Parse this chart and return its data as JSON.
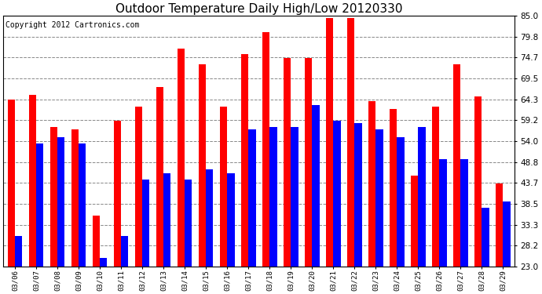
{
  "title": "Outdoor Temperature Daily High/Low 20120330",
  "copyright": "Copyright 2012 Cartronics.com",
  "dates": [
    "03/06",
    "03/07",
    "03/08",
    "03/09",
    "03/10",
    "03/11",
    "03/12",
    "03/13",
    "03/14",
    "03/15",
    "03/16",
    "03/17",
    "03/18",
    "03/19",
    "03/20",
    "03/21",
    "03/22",
    "03/23",
    "03/24",
    "03/25",
    "03/26",
    "03/27",
    "03/28",
    "03/29"
  ],
  "highs": [
    64.3,
    65.5,
    57.5,
    57.0,
    35.5,
    59.0,
    62.5,
    67.5,
    77.0,
    73.0,
    62.5,
    75.5,
    81.0,
    74.5,
    74.5,
    84.5,
    84.5,
    64.0,
    62.0,
    45.5,
    62.5,
    73.0,
    65.0,
    43.5
  ],
  "lows": [
    30.5,
    53.5,
    55.0,
    53.5,
    25.0,
    30.5,
    44.5,
    46.0,
    44.5,
    47.0,
    46.0,
    57.0,
    57.5,
    57.5,
    63.0,
    59.0,
    58.5,
    57.0,
    55.0,
    57.5,
    49.5,
    49.5,
    37.5,
    39.0
  ],
  "bar_color_high": "#ff0000",
  "bar_color_low": "#0000ff",
  "background_color": "#ffffff",
  "plot_background": "#ffffff",
  "grid_color": "#888888",
  "yticks": [
    23.0,
    28.2,
    33.3,
    38.5,
    43.7,
    48.8,
    54.0,
    59.2,
    64.3,
    69.5,
    74.7,
    79.8,
    85.0
  ],
  "ymin": 23.0,
  "ymax": 85.0,
  "title_fontsize": 11,
  "copyright_fontsize": 7,
  "bar_width": 0.35
}
